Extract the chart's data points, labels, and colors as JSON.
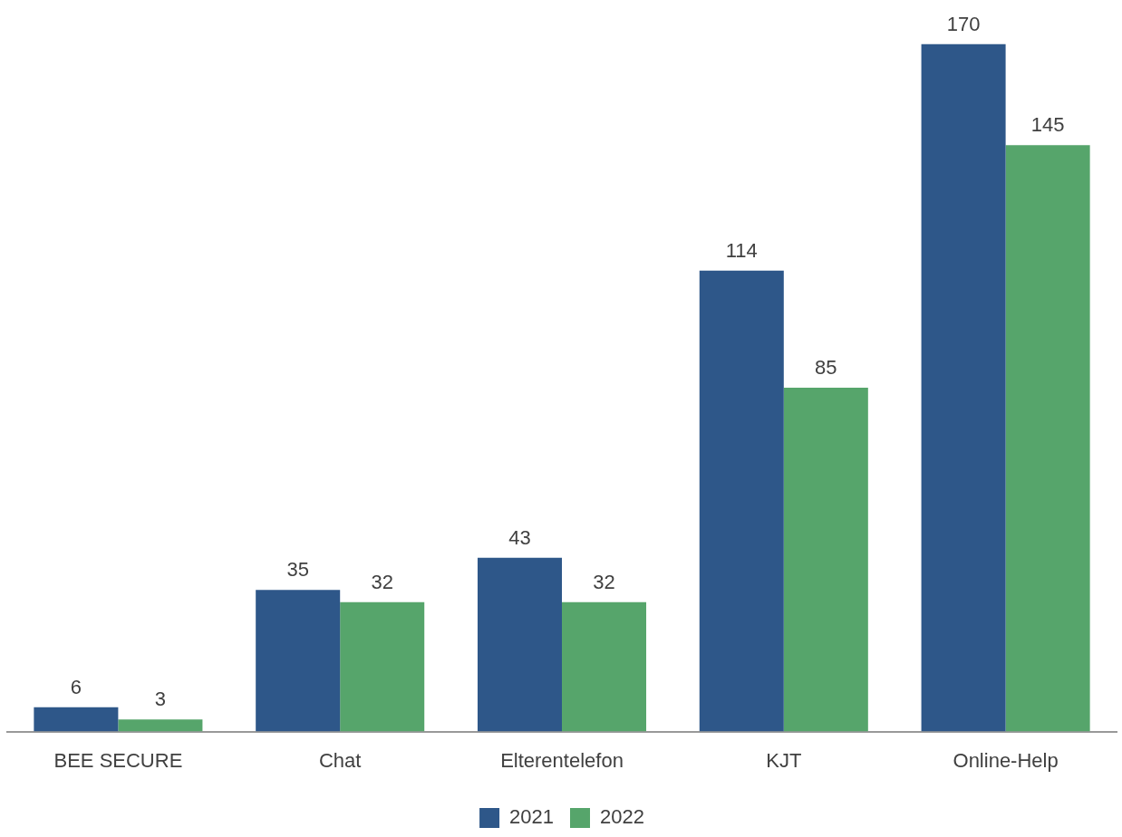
{
  "chart_data": {
    "type": "bar",
    "categories": [
      "BEE SECURE",
      "Chat",
      "Elterentelefon",
      "KJT",
      "Online-Help"
    ],
    "series": [
      {
        "name": "2021",
        "color": "#2e5789",
        "values": [
          6,
          35,
          43,
          114,
          170
        ]
      },
      {
        "name": "2022",
        "color": "#56a56b",
        "values": [
          3,
          32,
          32,
          85,
          145
        ]
      }
    ],
    "data_labels": true,
    "legend": "bottom"
  }
}
